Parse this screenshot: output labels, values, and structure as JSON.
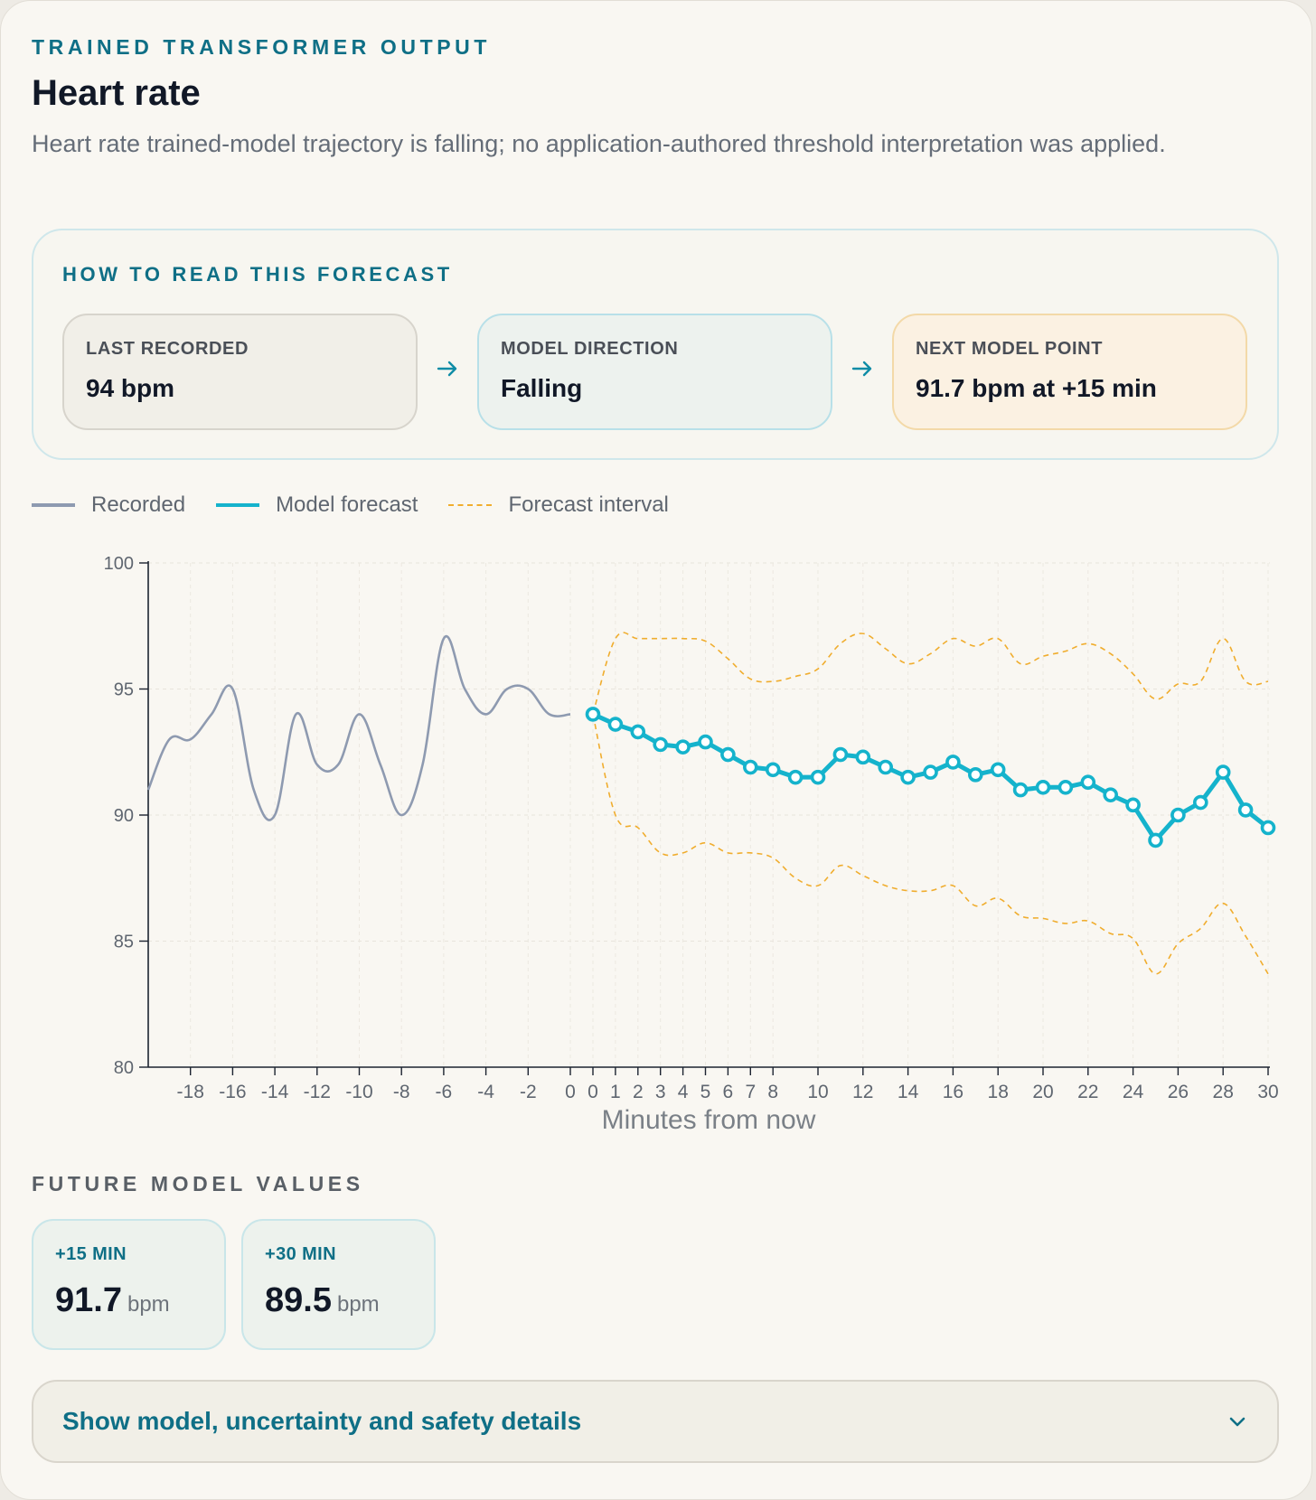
{
  "header": {
    "eyebrow": "TRAINED TRANSFORMER OUTPUT",
    "title": "Heart rate",
    "summary": "Heart rate trained-model trajectory is falling; no application-authored threshold interpretation was applied."
  },
  "howto": {
    "title": "HOW TO READ THIS FORECAST",
    "steps": [
      {
        "label": "LAST RECORDED",
        "value": "94 bpm"
      },
      {
        "label": "MODEL DIRECTION",
        "value": "Falling"
      },
      {
        "label": "NEXT MODEL POINT",
        "value": "91.7 bpm at +15 min"
      }
    ],
    "arrow_icon": "arrow-right-icon"
  },
  "legend": [
    "Recorded",
    "Model forecast",
    "Forecast interval"
  ],
  "colors": {
    "recorded": "#8e9ab0",
    "forecast": "#15b3cc",
    "interval": "#f0ad2e",
    "accent": "#0f6f86"
  },
  "chart_data": {
    "type": "line",
    "xlabel": "Minutes from now",
    "ylabel": "",
    "ylim": [
      80,
      100
    ],
    "yticks": [
      80,
      85,
      90,
      95,
      100
    ],
    "grid": true,
    "legend_position": "top-left",
    "series": [
      {
        "name": "Recorded",
        "x": [
          -20,
          -19,
          -18,
          -17,
          -16,
          -15,
          -14,
          -13,
          -12,
          -11,
          -10,
          -9,
          -8,
          -7,
          -6,
          -5,
          -4,
          -3,
          -2,
          -1,
          0
        ],
        "values": [
          91,
          93,
          93,
          94,
          95,
          91,
          90,
          94,
          92,
          92,
          94,
          92,
          90,
          92,
          97,
          95,
          94,
          95,
          95,
          94,
          94
        ]
      },
      {
        "name": "Model forecast",
        "x": [
          0,
          1,
          2,
          3,
          4,
          5,
          6,
          7,
          8,
          9,
          10,
          11,
          12,
          13,
          14,
          15,
          16,
          17,
          18,
          19,
          20,
          21,
          22,
          23,
          24,
          25,
          26,
          27,
          28,
          29,
          30
        ],
        "values": [
          94.0,
          93.6,
          93.3,
          92.8,
          92.7,
          92.9,
          92.4,
          91.9,
          91.8,
          91.5,
          91.5,
          92.4,
          92.3,
          91.9,
          91.5,
          91.7,
          92.1,
          91.6,
          91.8,
          91.0,
          91.1,
          91.1,
          91.3,
          90.8,
          90.4,
          89.0,
          90.0,
          90.5,
          91.7,
          90.2,
          89.5
        ]
      },
      {
        "name": "Forecast interval upper",
        "x": [
          0,
          1,
          2,
          3,
          4,
          5,
          6,
          7,
          8,
          9,
          10,
          11,
          12,
          13,
          14,
          15,
          16,
          17,
          18,
          19,
          20,
          21,
          22,
          23,
          24,
          25,
          26,
          27,
          28,
          29,
          30
        ],
        "values": [
          94.0,
          97.0,
          97.0,
          97.0,
          97.0,
          96.9,
          96.2,
          95.4,
          95.3,
          95.5,
          95.8,
          96.8,
          97.2,
          96.6,
          96.0,
          96.4,
          97.0,
          96.7,
          97.0,
          96.0,
          96.3,
          96.5,
          96.8,
          96.4,
          95.6,
          94.6,
          95.2,
          95.3,
          97.0,
          95.3,
          95.3
        ]
      },
      {
        "name": "Forecast interval lower",
        "x": [
          0,
          1,
          2,
          3,
          4,
          5,
          6,
          7,
          8,
          9,
          10,
          11,
          12,
          13,
          14,
          15,
          16,
          17,
          18,
          19,
          20,
          21,
          22,
          23,
          24,
          25,
          26,
          27,
          28,
          29,
          30
        ],
        "values": [
          94.0,
          90.0,
          89.5,
          88.5,
          88.5,
          88.9,
          88.5,
          88.5,
          88.3,
          87.5,
          87.2,
          88.0,
          87.6,
          87.2,
          87.0,
          87.0,
          87.2,
          86.4,
          86.7,
          86.0,
          85.9,
          85.7,
          85.8,
          85.3,
          85.1,
          83.7,
          84.9,
          85.5,
          86.5,
          85.2,
          83.7
        ]
      }
    ],
    "xticks_left": [
      "-18",
      "-16",
      "-14",
      "-12",
      "-10",
      "-8",
      "-6",
      "-4",
      "-2",
      "0"
    ],
    "xticks_right": [
      "0",
      "1",
      "2",
      "3",
      "4",
      "5",
      "6",
      "7",
      "8",
      "10",
      "12",
      "14",
      "16",
      "18",
      "20",
      "22",
      "24",
      "26",
      "28",
      "30"
    ]
  },
  "future": {
    "title": "FUTURE MODEL VALUES",
    "tiles": [
      {
        "label": "+15 MIN",
        "value": "91.7",
        "unit": "bpm"
      },
      {
        "label": "+30 MIN",
        "value": "89.5",
        "unit": "bpm"
      }
    ]
  },
  "details": {
    "label": "Show model, uncertainty and safety details",
    "icon": "chevron-down-icon"
  }
}
